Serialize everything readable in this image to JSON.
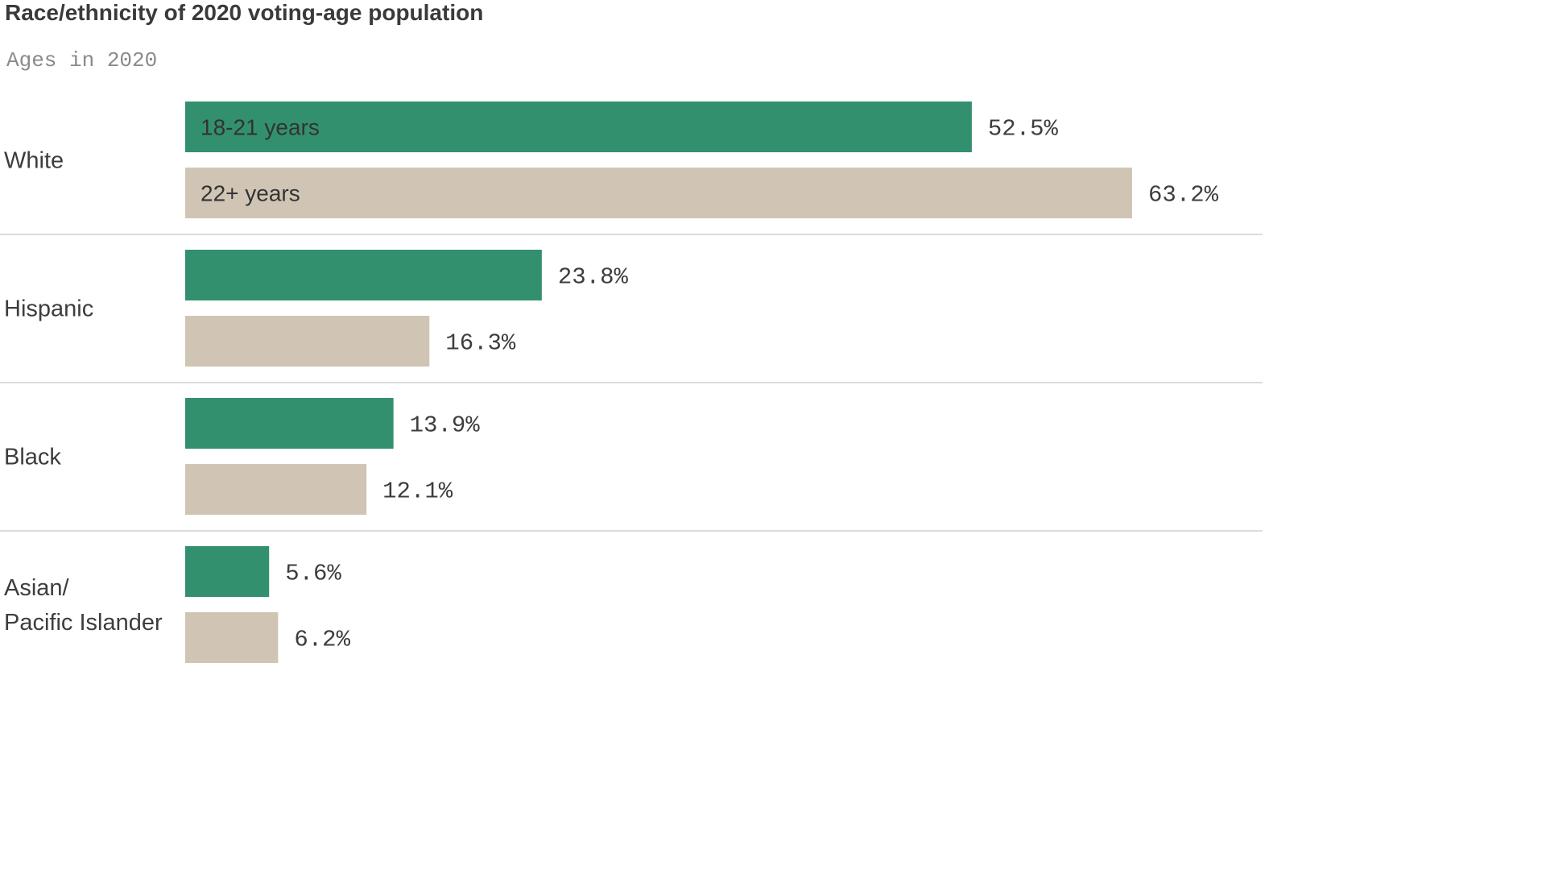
{
  "title": "Race/ethnicity of 2020 voting-age population",
  "subtitle": "Ages in 2020",
  "colors": {
    "series_1": "#33906f",
    "series_2": "#d0c5b4",
    "separator": "#d0d0d0",
    "text": "#3d3d3d"
  },
  "chart_data": {
    "type": "bar",
    "orientation": "horizontal",
    "title": "Race/ethnicity of 2020 voting-age population",
    "subtitle": "Ages in 2020",
    "categories": [
      "White",
      "Hispanic",
      "Black",
      "Asian/\nPacific Islander"
    ],
    "series": [
      {
        "name": "18-21 years",
        "values": [
          52.5,
          23.8,
          13.9,
          5.6
        ],
        "labels": [
          "52.5%",
          "23.8%",
          "13.9%",
          "5.6%"
        ]
      },
      {
        "name": "22+ years",
        "values": [
          63.2,
          16.3,
          12.1,
          6.2
        ],
        "labels": [
          "63.2%",
          "16.3%",
          "12.1%",
          "6.2%"
        ]
      }
    ],
    "xlim": [
      0,
      63.2
    ],
    "grid": false,
    "legend": "inline on first bars",
    "value_format": "percent"
  }
}
